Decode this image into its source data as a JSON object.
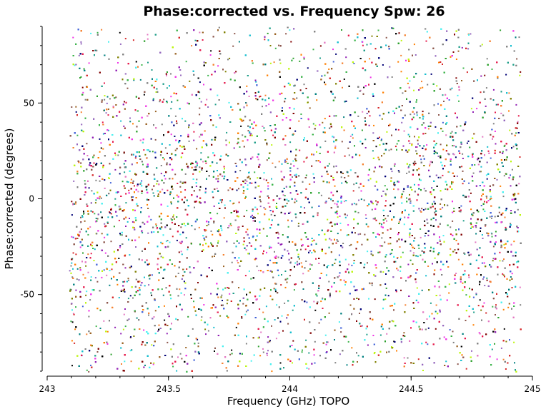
{
  "chart_data": {
    "type": "scatter",
    "title": "Phase:corrected vs. Frequency Spw: 26",
    "xlabel": "Frequency (GHz) TOPO",
    "ylabel": "Phase:corrected (degrees)",
    "xlim": [
      243.0,
      245.0
    ],
    "ylim": [
      -90,
      90
    ],
    "x_ticks": [
      243,
      243.5,
      244,
      244.5,
      245
    ],
    "x_tick_labels": [
      "243",
      "243.5",
      "244",
      "244.5",
      "245"
    ],
    "y_ticks": [
      -50,
      0,
      50
    ],
    "y_tick_labels": [
      "-50",
      "0",
      "50"
    ],
    "grid": false,
    "legend": "none",
    "data_extent": {
      "x_range": [
        243.09,
        244.95
      ],
      "y_range": [
        -90,
        90
      ],
      "density_note_y_center": -5
    },
    "series_colors": [
      "#e6194b",
      "#3cb44b",
      "#4363d8",
      "#f58231",
      "#911eb4",
      "#46f0f0",
      "#f032e6",
      "#bcf60c",
      "#008080",
      "#9a6324",
      "#800000",
      "#808000",
      "#000075",
      "#808080",
      "#000000",
      "#ff7f00",
      "#1f9e89",
      "#d62728",
      "#2ca02c",
      "#9467bd",
      "#8c564b",
      "#17becf",
      "#e377c2",
      "#7f7f7f"
    ]
  }
}
